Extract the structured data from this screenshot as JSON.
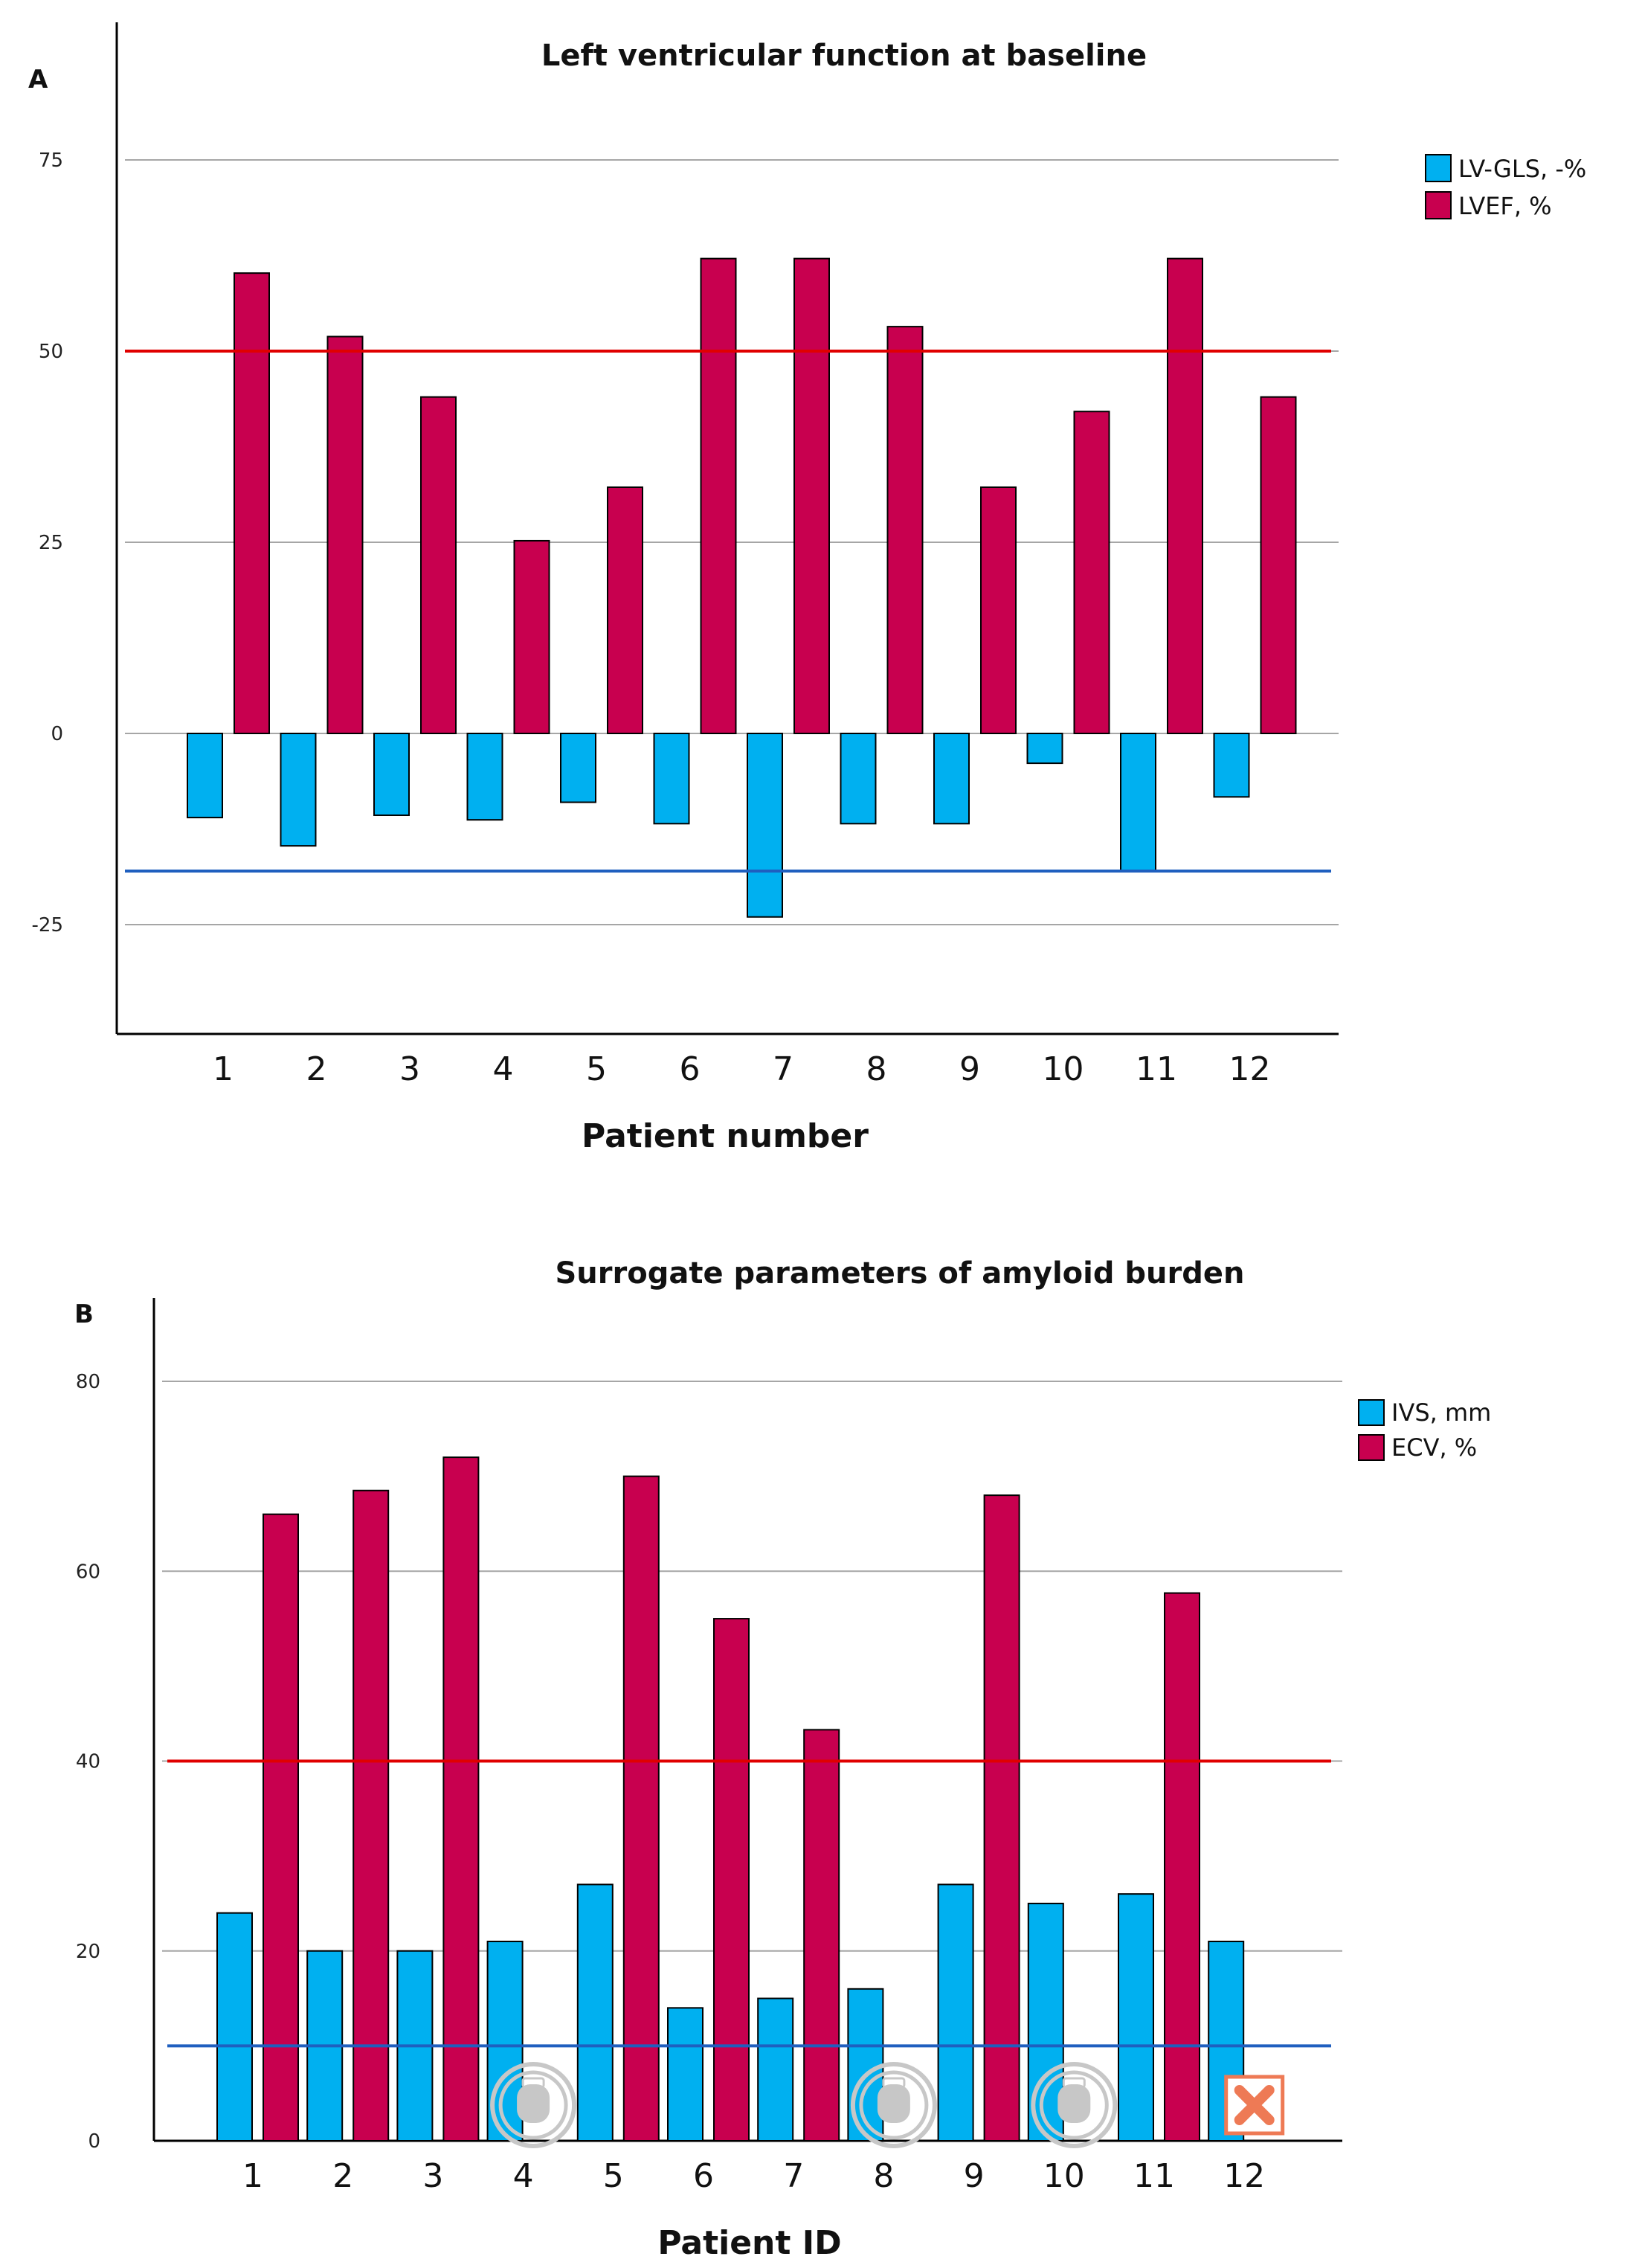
{
  "colors": {
    "primary": "#00b0f0",
    "secondary": "#c8004f",
    "red_line": "#e00000",
    "blue_line": "#1f5fbf",
    "grid": "#a6a6a6",
    "icon": "#c7c7c7",
    "x_marker": "#ee7a55"
  },
  "chart_data": [
    {
      "panel": "A",
      "type": "bar",
      "title": "Left ventricular function at baseline",
      "xlabel": "Patient number",
      "ylabel": "",
      "categories": [
        "1",
        "2",
        "3",
        "4",
        "5",
        "6",
        "7",
        "8",
        "9",
        "10",
        "11",
        "12"
      ],
      "yticks": [
        -25,
        0,
        25,
        50,
        75
      ],
      "ylim": [
        -40,
        94
      ],
      "grid": true,
      "legend_position": "top-right",
      "series": [
        {
          "name": "LV-GLS, -%",
          "color_key": "primary",
          "values": [
            -11,
            -14.7,
            -10.7,
            -11.3,
            -9,
            -11.8,
            -24,
            -11.8,
            -11.8,
            -3.9,
            -18,
            -8.3
          ]
        },
        {
          "name": "LVEF, %",
          "color_key": "secondary",
          "values": [
            60.2,
            51.9,
            44,
            25.2,
            32.2,
            62.1,
            62.1,
            53.2,
            32.2,
            42.1,
            62.1,
            44
          ]
        }
      ],
      "reference_lines": [
        {
          "value": 50,
          "color_key": "red_line"
        },
        {
          "value": -18,
          "color_key": "blue_line"
        }
      ]
    },
    {
      "panel": "B",
      "type": "bar",
      "title": "Surrogate parameters of amyloid burden",
      "xlabel": "Patient ID",
      "ylabel": "",
      "categories": [
        "1",
        "2",
        "3",
        "4",
        "5",
        "6",
        "7",
        "8",
        "9",
        "10",
        "11",
        "12"
      ],
      "yticks": [
        0,
        20,
        40,
        60,
        80
      ],
      "ylim": [
        0,
        88
      ],
      "grid": true,
      "legend_position": "top-right",
      "series": [
        {
          "name": "IVS, mm",
          "color_key": "primary",
          "values": [
            24,
            20,
            20,
            21,
            27,
            14,
            15,
            16,
            27,
            25,
            26,
            21
          ]
        },
        {
          "name": "ECV, %",
          "color_key": "secondary",
          "values": [
            66,
            68.5,
            72,
            null,
            70,
            55,
            43.3,
            null,
            68,
            null,
            57.7,
            null
          ]
        }
      ],
      "reference_lines": [
        {
          "value": 40,
          "color_key": "red_line"
        },
        {
          "value": 10,
          "color_key": "blue_line"
        }
      ],
      "markers": [
        {
          "category": "4",
          "symbol": "pacemaker"
        },
        {
          "category": "8",
          "symbol": "pacemaker"
        },
        {
          "category": "10",
          "symbol": "pacemaker"
        },
        {
          "category": "12",
          "symbol": "x-box"
        }
      ]
    }
  ]
}
